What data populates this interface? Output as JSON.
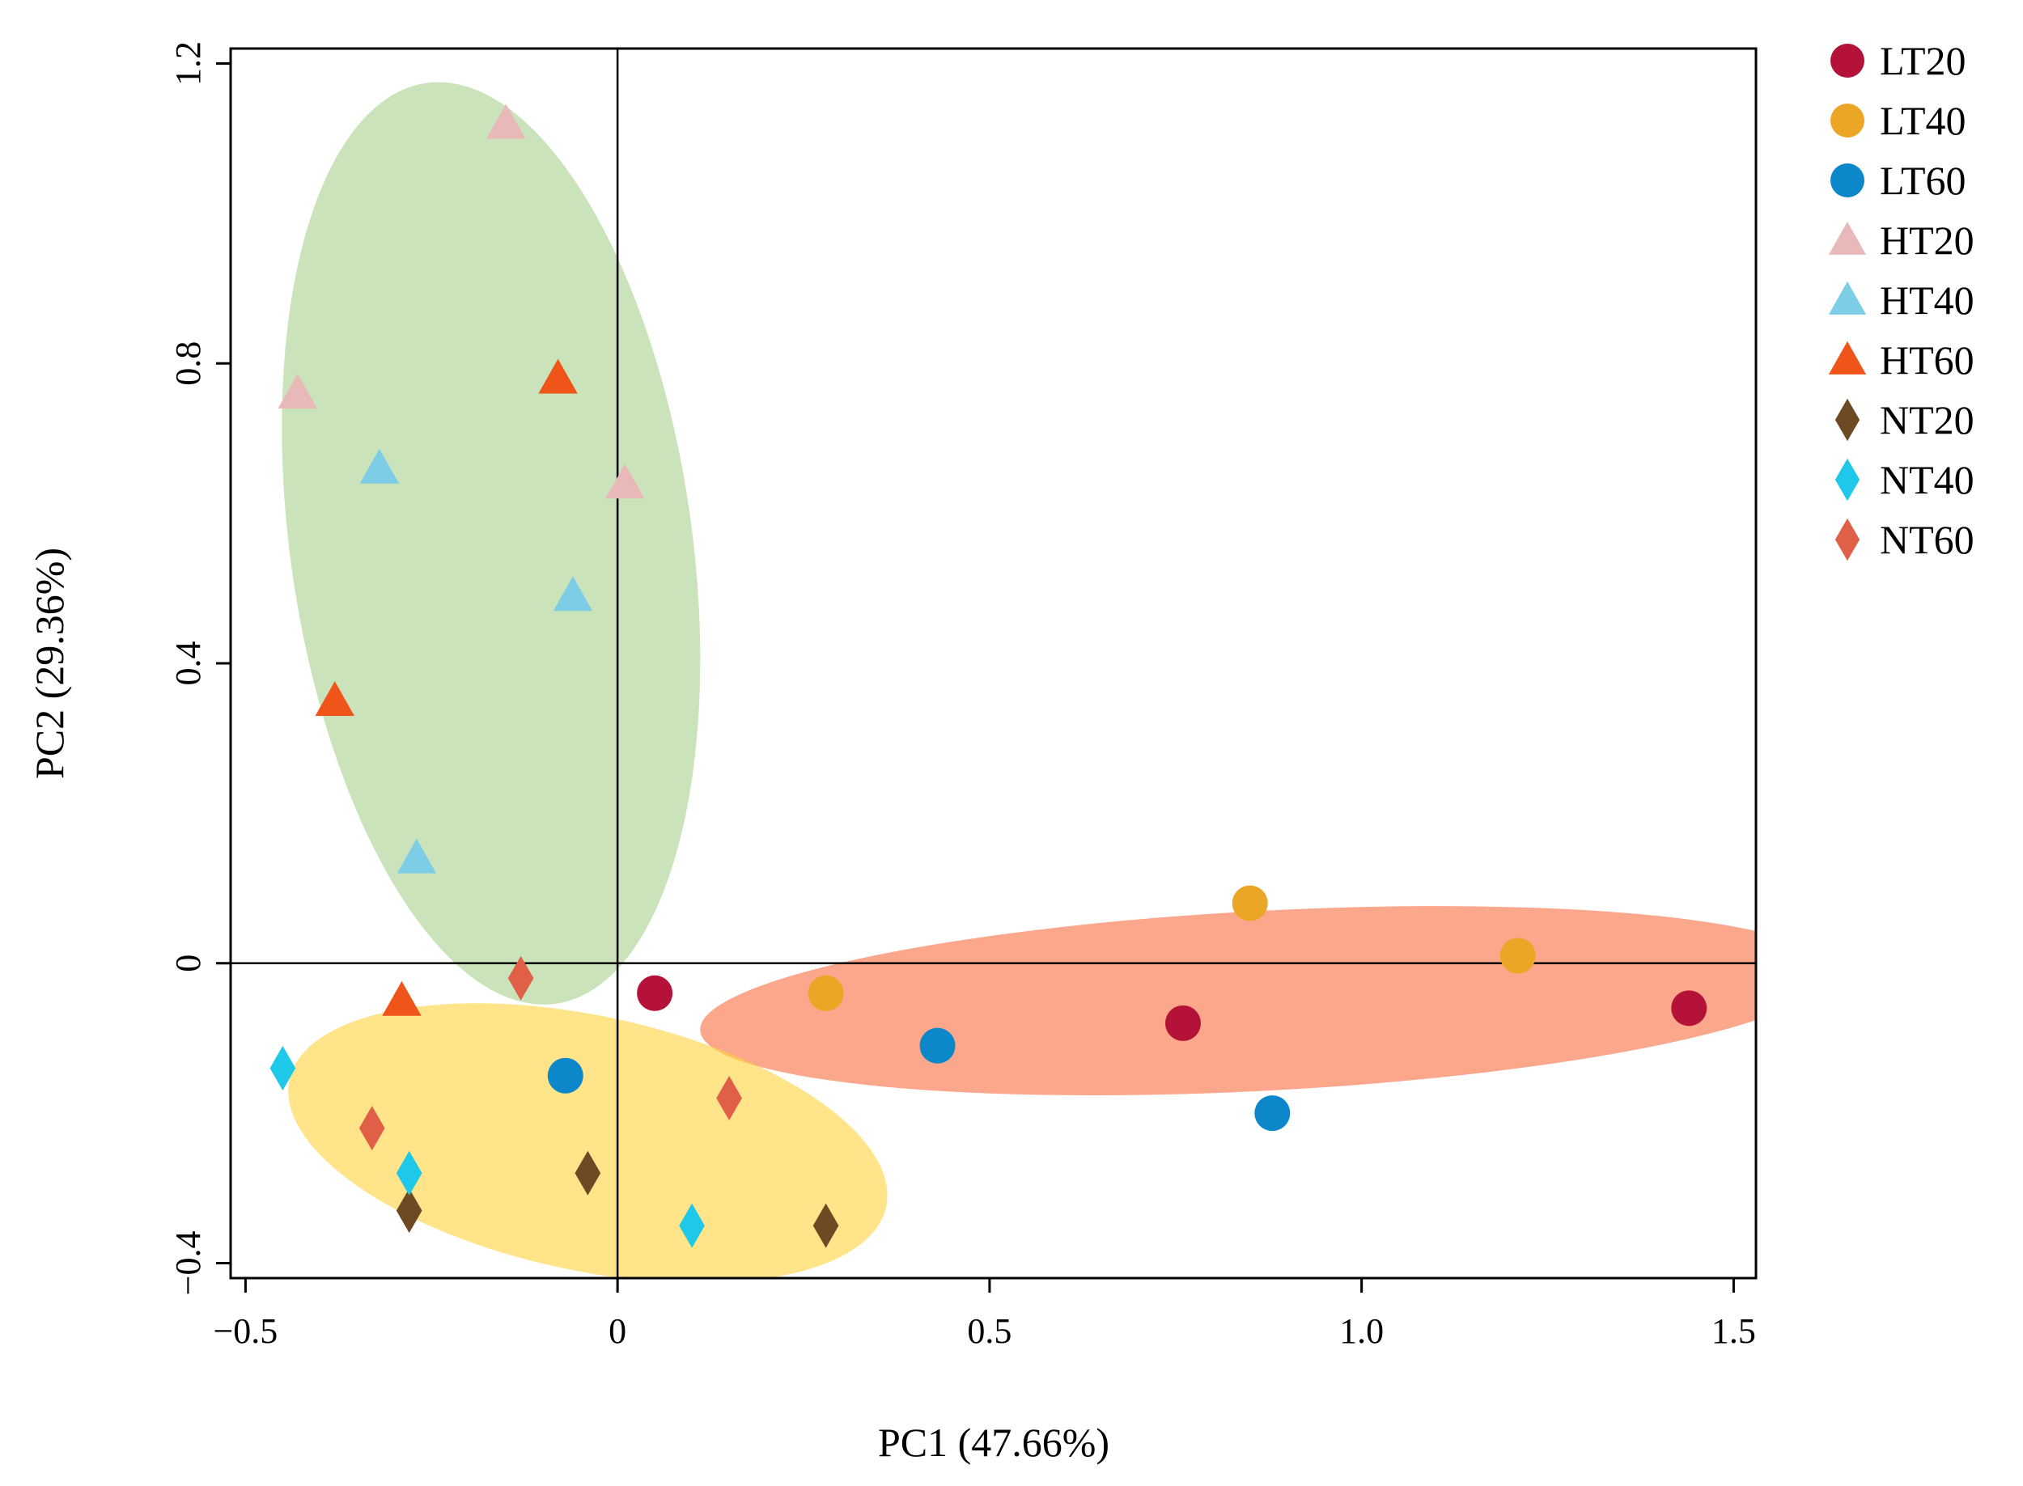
{
  "chart_data": {
    "type": "scatter",
    "title": "",
    "xlabel": "PC1 (47.66%)",
    "ylabel": "PC2 (29.36%)",
    "xlim": [
      -0.52,
      1.53
    ],
    "ylim": [
      -0.42,
      1.22
    ],
    "xticks": [
      -0.5,
      0,
      0.5,
      1.0,
      1.5
    ],
    "xtick_labels": [
      "−0.5",
      "0",
      "0.5",
      "1.0",
      "1.5"
    ],
    "yticks": [
      -0.4,
      0,
      0.4,
      0.8,
      1.2
    ],
    "ytick_labels": [
      "−0.4",
      "0",
      "0.4",
      "0.8",
      "1.2"
    ],
    "reference_lines": {
      "x": 0,
      "y": 0
    },
    "grid": false,
    "legend_position": "outside-right",
    "ellipses": [
      {
        "group": "HT",
        "color": "#a8d08d",
        "opacity": 0.6,
        "center": [
          -0.17,
          0.56
        ],
        "rx": 0.27,
        "ry": 0.62,
        "rotation_deg": 8
      },
      {
        "group": "LT",
        "color": "#f86c40",
        "opacity": 0.6,
        "center": [
          0.87,
          -0.05
        ],
        "rx": 0.76,
        "ry": 0.12,
        "rotation_deg": 3
      },
      {
        "group": "NT",
        "color": "#ffd23c",
        "opacity": 0.6,
        "center": [
          -0.04,
          -0.24
        ],
        "rx": 0.41,
        "ry": 0.17,
        "rotation_deg": -12
      }
    ],
    "series": [
      {
        "name": "LT20",
        "marker": "circle",
        "color": "#b5123a",
        "points": [
          [
            0.05,
            -0.04
          ],
          [
            0.76,
            -0.08
          ],
          [
            1.44,
            -0.06
          ]
        ]
      },
      {
        "name": "LT40",
        "marker": "circle",
        "color": "#eba625",
        "points": [
          [
            0.28,
            -0.04
          ],
          [
            0.85,
            0.08
          ],
          [
            1.21,
            0.01
          ]
        ]
      },
      {
        "name": "LT60",
        "marker": "circle",
        "color": "#0c87c9",
        "points": [
          [
            -0.07,
            -0.15
          ],
          [
            0.43,
            -0.11
          ],
          [
            0.88,
            -0.2
          ]
        ]
      },
      {
        "name": "HT20",
        "marker": "triangle",
        "color": "#e9b9b9",
        "points": [
          [
            -0.15,
            1.12
          ],
          [
            -0.43,
            0.76
          ],
          [
            0.01,
            0.64
          ]
        ]
      },
      {
        "name": "HT40",
        "marker": "triangle",
        "color": "#7ccde5",
        "points": [
          [
            -0.32,
            0.66
          ],
          [
            -0.06,
            0.49
          ],
          [
            -0.27,
            0.14
          ]
        ]
      },
      {
        "name": "HT60",
        "marker": "triangle",
        "color": "#ef5419",
        "points": [
          [
            -0.08,
            0.78
          ],
          [
            -0.38,
            0.35
          ],
          [
            -0.29,
            -0.05
          ]
        ]
      },
      {
        "name": "NT20",
        "marker": "diamond",
        "color": "#6d4a23",
        "points": [
          [
            -0.04,
            -0.28
          ],
          [
            -0.28,
            -0.33
          ],
          [
            0.28,
            -0.35
          ]
        ]
      },
      {
        "name": "NT40",
        "marker": "diamond",
        "color": "#1ec8e8",
        "points": [
          [
            -0.45,
            -0.14
          ],
          [
            -0.28,
            -0.28
          ],
          [
            0.1,
            -0.35
          ]
        ]
      },
      {
        "name": "NT60",
        "marker": "diamond",
        "color": "#df5f47",
        "points": [
          [
            -0.13,
            -0.02
          ],
          [
            -0.33,
            -0.22
          ],
          [
            0.15,
            -0.18
          ]
        ]
      }
    ]
  }
}
